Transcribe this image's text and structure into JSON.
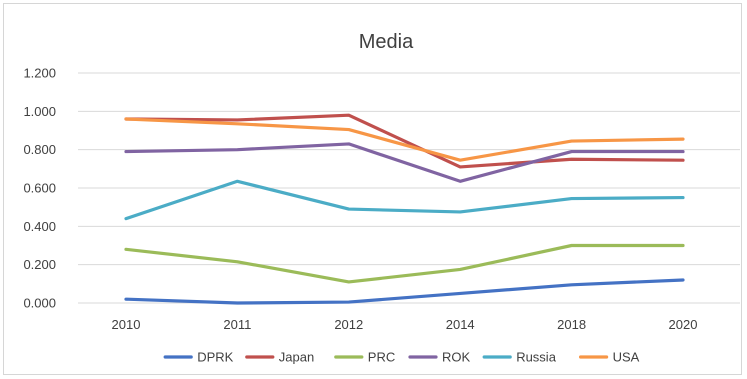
{
  "chart_data": {
    "type": "line",
    "title": "Media",
    "categories": [
      "2010",
      "2011",
      "2012",
      "2014",
      "2018",
      "2020"
    ],
    "y_ticks": [
      "0.000",
      "0.200",
      "0.400",
      "0.600",
      "0.800",
      "1.000",
      "1.200"
    ],
    "ylim": [
      0,
      1.2
    ],
    "grid": true,
    "legend_position": "bottom",
    "series": [
      {
        "name": "DPRK",
        "color": "#4472c4",
        "values": [
          0.02,
          0.0,
          0.005,
          0.05,
          0.095,
          0.12
        ]
      },
      {
        "name": "Japan",
        "color": "#c0504d",
        "values": [
          0.96,
          0.955,
          0.98,
          0.71,
          0.75,
          0.745
        ]
      },
      {
        "name": "PRC",
        "color": "#9bbb59",
        "values": [
          0.28,
          0.215,
          0.11,
          0.175,
          0.3,
          0.3
        ]
      },
      {
        "name": "ROK",
        "color": "#8064a2",
        "values": [
          0.79,
          0.8,
          0.83,
          0.635,
          0.79,
          0.79
        ]
      },
      {
        "name": "Russia",
        "color": "#4bacc6",
        "values": [
          0.44,
          0.635,
          0.49,
          0.475,
          0.545,
          0.55
        ]
      },
      {
        "name": "USA",
        "color": "#f79646",
        "values": [
          0.96,
          0.935,
          0.905,
          0.745,
          0.845,
          0.855
        ]
      }
    ]
  }
}
